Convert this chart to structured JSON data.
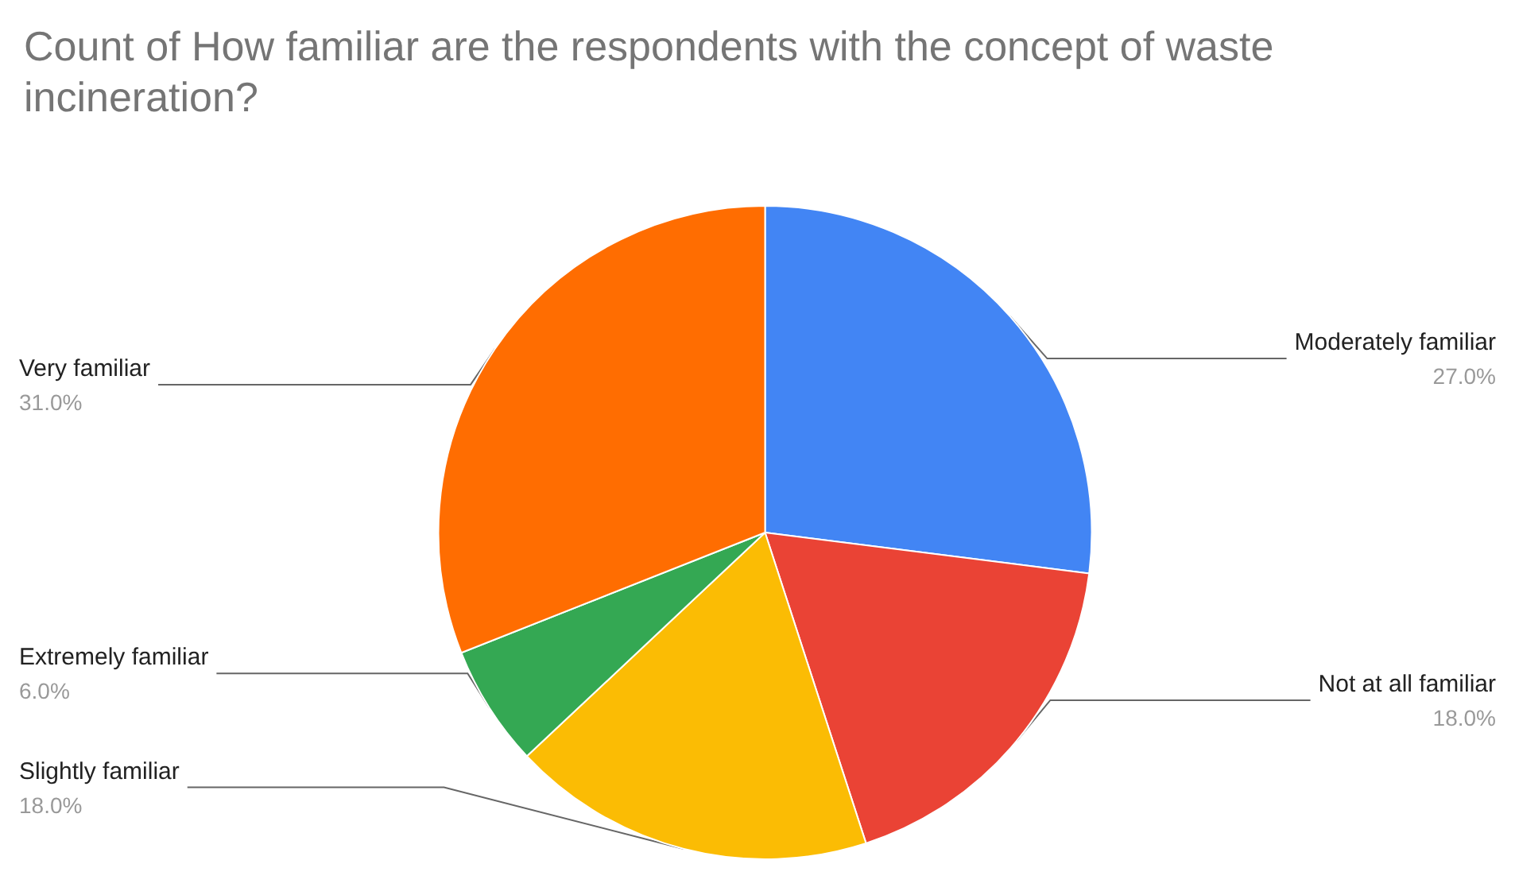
{
  "chart_data": {
    "type": "pie",
    "title": "Count of How familiar are the respondents with the concept of waste incineration?",
    "categories": [
      "Moderately familiar",
      "Not at all familiar",
      "Slightly familiar",
      "Extremely familiar",
      "Very familiar"
    ],
    "values": [
      27,
      18,
      18,
      6,
      31
    ],
    "value_labels": [
      "27.0%",
      "18.0%",
      "18.0%",
      "6.0%",
      "31.0%"
    ],
    "colors": [
      "#4285f4",
      "#ea4335",
      "#fbbc04",
      "#34a853",
      "#ff6d01"
    ],
    "legend": false
  }
}
